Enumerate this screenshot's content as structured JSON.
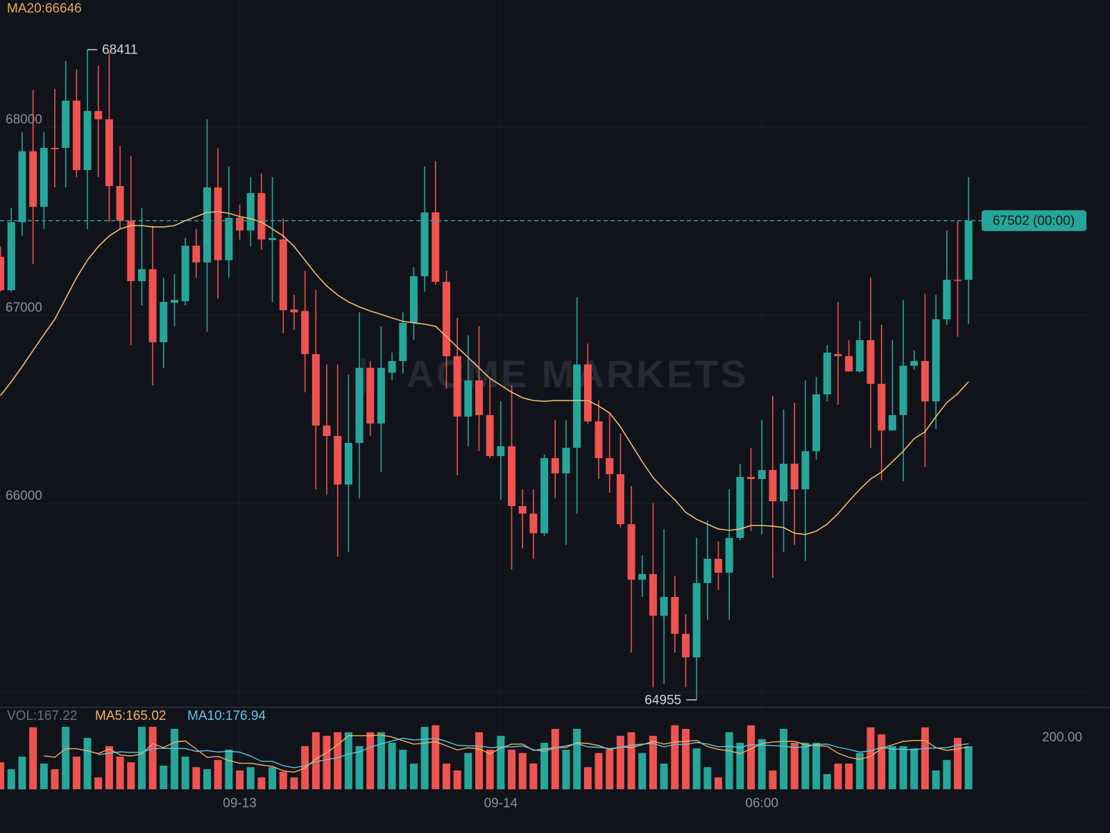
{
  "chart_data": {
    "type": "candlestick",
    "watermark": "ACME MARKETS",
    "price_tag": "67502 (00:00)",
    "categories": [
      null,
      null,
      null,
      null,
      null,
      null,
      null,
      null,
      null,
      null,
      null,
      null,
      null,
      null,
      null,
      null,
      null,
      null,
      null,
      null,
      null,
      null,
      "09-13",
      null,
      null,
      null,
      null,
      null,
      null,
      null,
      null,
      null,
      null,
      null,
      null,
      null,
      null,
      null,
      null,
      null,
      null,
      null,
      null,
      null,
      null,
      null,
      "09-14",
      null,
      null,
      null,
      null,
      null,
      null,
      null,
      null,
      null,
      null,
      null,
      null,
      null,
      null,
      null,
      null,
      null,
      null,
      null,
      null,
      null,
      null,
      null,
      "06:00",
      null,
      null,
      null,
      null,
      null,
      null,
      null,
      null,
      null,
      null,
      null,
      null,
      null,
      null,
      null,
      null,
      null,
      null,
      null
    ],
    "open": [
      67310,
      67133,
      67494,
      67871,
      67576,
      67889,
      67889,
      68140,
      67771,
      68085,
      68041,
      67686,
      67502,
      67181,
      67244,
      66856,
      67066,
      67074,
      67369,
      67280,
      67679,
      67292,
      67517,
      67450,
      67649,
      67399,
      67402,
      67030,
      67022,
      66793,
      66413,
      66358,
      66100,
      66321,
      66720,
      66424,
      66694,
      66756,
      66959,
      67207,
      67546,
      67177,
      66782,
      66461,
      66653,
      66469,
      66251,
      66303,
      65985,
      65945,
      65841,
      66240,
      66159,
      66295,
      66738,
      66435,
      66240,
      66155,
      65889,
      65594,
      65624,
      65402,
      65502,
      65306,
      65181,
      65576,
      65705,
      65631,
      65816,
      66140,
      66129,
      66177,
      66011,
      66210,
      66074,
      66277,
      66579,
      66793,
      66782,
      66701,
      66867,
      66635,
      66387,
      66469,
      66731,
      66756,
      66542,
      66978,
      67188,
      67188
    ],
    "high": [
      67365,
      67568,
      67974,
      68196,
      67974,
      68203,
      68351,
      68306,
      68411,
      68325,
      68399,
      67900,
      67845,
      67568,
      67476,
      67199,
      67218,
      67410,
      67458,
      68041,
      67889,
      67790,
      67587,
      67734,
      67753,
      67734,
      67513,
      67107,
      67236,
      67133,
      66738,
      66738,
      66683,
      67015,
      66756,
      66941,
      66801,
      67015,
      67255,
      67790,
      67819,
      67236,
      66985,
      66893,
      66941,
      66664,
      66542,
      66627,
      66074,
      66074,
      66258,
      66443,
      66443,
      67096,
      66849,
      66546,
      66480,
      66369,
      66092,
      65723,
      66000,
      65863,
      65613,
      65410,
      65816,
      65908,
      65797,
      66074,
      66210,
      66295,
      66443,
      66572,
      66498,
      66535,
      66653,
      66672,
      66841,
      67070,
      66867,
      66970,
      67199,
      66948,
      66867,
      67081,
      66812,
      67114,
      67107,
      67450,
      67502,
      67734
    ],
    "low": [
      67125,
      67125,
      67421,
      67273,
      67458,
      67679,
      67679,
      67734,
      67458,
      67734,
      67494,
      67458,
      66841,
      67052,
      66627,
      66720,
      66941,
      67052,
      67199,
      66911,
      67089,
      67199,
      67402,
      67365,
      67347,
      67070,
      66904,
      66923,
      66590,
      66074,
      66048,
      65716,
      65742,
      66026,
      66358,
      66166,
      66653,
      66690,
      66867,
      67125,
      67162,
      66609,
      66148,
      66303,
      66277,
      66240,
      66018,
      65649,
      65760,
      65705,
      65827,
      66026,
      65779,
      65945,
      66424,
      66129,
      66055,
      65871,
      65207,
      65502,
      65022,
      65041,
      65207,
      65022,
      64955,
      65380,
      65539,
      65380,
      65804,
      65852,
      65834,
      65605,
      65742,
      65779,
      65694,
      66232,
      66542,
      66524,
      66701,
      66694,
      66295,
      66122,
      66387,
      66118,
      66708,
      66192,
      66395,
      66948,
      66886,
      66952
    ],
    "close": [
      67133,
      67494,
      67871,
      67576,
      67889,
      67882,
      68140,
      67771,
      68085,
      68041,
      67686,
      67502,
      67181,
      67244,
      66856,
      67070,
      67081,
      67369,
      67280,
      67679,
      67292,
      67517,
      67450,
      67649,
      67402,
      67410,
      67026,
      67015,
      66793,
      66413,
      66358,
      66100,
      66321,
      66720,
      66424,
      66720,
      66756,
      66959,
      67207,
      67546,
      67177,
      66782,
      66461,
      66653,
      66469,
      66251,
      66303,
      65985,
      65945,
      65841,
      66240,
      66159,
      66295,
      66738,
      66435,
      66240,
      66155,
      65889,
      65594,
      65624,
      65402,
      65502,
      65306,
      65181,
      65576,
      65705,
      65631,
      65816,
      66140,
      66129,
      66177,
      66011,
      66210,
      66074,
      66277,
      66579,
      66801,
      66782,
      66701,
      66867,
      66635,
      66387,
      66469,
      66731,
      66756,
      66542,
      66978,
      67188,
      67185,
      67502
    ],
    "up_color": "#26a69a",
    "down_color": "#ef5350",
    "ma": {
      "name": "MA20:66646",
      "color": "#f3c071",
      "values": [
        66572,
        66646,
        66727,
        66812,
        66897,
        66978,
        67089,
        67199,
        67292,
        67365,
        67421,
        67458,
        67476,
        67476,
        67469,
        67469,
        67476,
        67502,
        67524,
        67546,
        67550,
        67542,
        67524,
        67513,
        67494,
        67458,
        67421,
        67365,
        67292,
        67218,
        67155,
        67107,
        67070,
        67044,
        67022,
        67004,
        66985,
        66967,
        66959,
        66952,
        66941,
        66886,
        66830,
        66775,
        66720,
        66664,
        66627,
        66590,
        66561,
        66546,
        66542,
        66546,
        66546,
        66546,
        66546,
        66517,
        66480,
        66406,
        66314,
        66221,
        66137,
        66074,
        66018,
        65952,
        65915,
        65889,
        65863,
        65856,
        65863,
        65882,
        65882,
        65878,
        65871,
        65841,
        65834,
        65852,
        65889,
        65945,
        66011,
        66074,
        66129,
        66166,
        66221,
        66277,
        66343,
        66380,
        66461,
        66535,
        66583,
        66646
      ]
    },
    "ylim": [
      64919,
      68675
    ],
    "yticks": [
      66000,
      67000,
      68000
    ],
    "grid": true,
    "volume": {
      "name": "VOL:167.22",
      "values": [
        105,
        78,
        127,
        241,
        100,
        78,
        243,
        127,
        200,
        46,
        168,
        127,
        105,
        243,
        243,
        92,
        235,
        127,
        86,
        78,
        114,
        154,
        73,
        86,
        46,
        86,
        68,
        46,
        168,
        222,
        208,
        222,
        222,
        168,
        222,
        222,
        181,
        154,
        100,
        243,
        249,
        100,
        73,
        141,
        222,
        154,
        208,
        154,
        141,
        100,
        181,
        235,
        154,
        235,
        86,
        141,
        154,
        208,
        222,
        141,
        208,
        100,
        249,
        235,
        159,
        86,
        46,
        222,
        181,
        249,
        195,
        73,
        235,
        181,
        181,
        181,
        59,
        100,
        100,
        141,
        241,
        214,
        168,
        168,
        159,
        241,
        73,
        114,
        200,
        167.22
      ],
      "ylim": [
        0,
        316
      ],
      "yticks": [
        {
          "value": 200,
          "label": "200.00"
        }
      ],
      "series": [
        {
          "name": "MA5:165.02",
          "color": "#f3b45c",
          "values": [
            null,
            null,
            null,
            null,
            130.2,
            124.8,
            157.8,
            157.8,
            149.6,
            138.8,
            156.8,
            133.6,
            129.2,
            137.8,
            177.2,
            162,
            183.6,
            188,
            156.6,
            123.6,
            128,
            111.8,
            101,
            101,
            94.6,
            89,
            71.8,
            66.4,
            82.8,
            118,
            142.4,
            173.2,
            208.4,
            208.4,
            208.4,
            211.2,
            203,
            189.4,
            175.8,
            180,
            185.4,
            169.2,
            153,
            161.2,
            157,
            138,
            159.6,
            175.8,
            175.8,
            151.4,
            156.8,
            162.2,
            162.2,
            181,
            178.2,
            170.2,
            154,
            164.8,
            162.2,
            173.2,
            186.6,
            175.8,
            184,
            186.6,
            190.2,
            165.8,
            155,
            149.6,
            138.8,
            156.8,
            178.6,
            184,
            186.6,
            186.6,
            173,
            170.2,
            167.4,
            140.4,
            124.2,
            116.2,
            128.2,
            159.2,
            172.8,
            186.4,
            190,
            190,
            161.8,
            151,
            157.4,
            165.02
          ]
        },
        {
          "name": "MA10:176.94",
          "color": "#5ec8e6",
          "values": [
            null,
            null,
            null,
            null,
            null,
            null,
            null,
            null,
            null,
            134.5,
            140.8,
            145.7,
            143.5,
            143.7,
            158,
            159.4,
            158.6,
            158.6,
            147.2,
            150.4,
            145,
            147.7,
            144.5,
            128.8,
            109.1,
            108.5,
            91.8,
            83.7,
            91.9,
            106.3,
            115.7,
            122.5,
            137.4,
            145.6,
            163.2,
            176.8,
            188.1,
            198.9,
            192.1,
            194.2,
            198.3,
            186.1,
            171.2,
            168.5,
            168.5,
            161.7,
            164.4,
            164.4,
            168.5,
            154.2,
            147.4,
            160.9,
            169,
            178.4,
            164.8,
            163.5,
            158.1,
            163.5,
            171.6,
            175.7,
            178.4,
            164.9,
            174.4,
            174.4,
            181.7,
            176.2,
            165.4,
            166.8,
            162.7,
            173.5,
            172.2,
            169.5,
            168.1,
            162.7,
            164.9,
            174.4,
            175.7,
            163.5,
            155.4,
            144.6,
            149.2,
            163.3,
            156.6,
            155.3,
            153.1,
            159.1,
            160.5,
            161.9,
            171.9,
            176.94
          ]
        }
      ]
    }
  }
}
